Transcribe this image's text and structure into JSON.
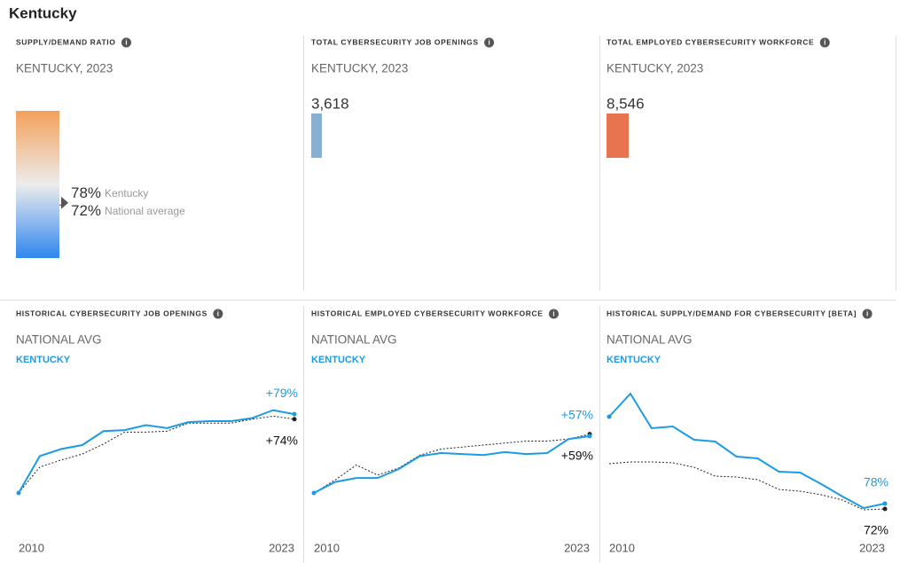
{
  "title": "Kentucky",
  "chart_data": [
    {
      "type": "gauge",
      "title": "SUPPLY/DEMAND RATIO",
      "subtitle": "KENTUCKY, 2023",
      "ylim": [
        0,
        200
      ],
      "gradient": [
        "#f4a05a",
        "#ececec",
        "#2f86ef"
      ],
      "series": [
        {
          "name": "Kentucky",
          "values": [
            78
          ],
          "value_labels": [
            "78%"
          ],
          "color": "#555555"
        },
        {
          "name": "National average",
          "values": [
            72
          ],
          "value_labels": [
            "72%"
          ],
          "color": "#555555"
        }
      ]
    },
    {
      "type": "bar",
      "title": "TOTAL CYBERSECURITY JOB OPENINGS",
      "subtitle": "KENTUCKY, 2023",
      "values": [
        3618
      ],
      "value_labels": [
        "3,618"
      ],
      "color": "#88b0d2",
      "ylim": [
        0,
        3618
      ]
    },
    {
      "type": "bar",
      "title": "TOTAL EMPLOYED CYBERSECURITY WORKFORCE",
      "subtitle": "KENTUCKY, 2023",
      "values": [
        8546
      ],
      "value_labels": [
        "8,546"
      ],
      "color": "#e8744f",
      "ylim": [
        0,
        8546
      ]
    },
    {
      "type": "line",
      "title": "HISTORICAL CYBERSECURITY JOB OPENINGS",
      "x": [
        2010,
        2011,
        2012,
        2013,
        2014,
        2015,
        2016,
        2017,
        2018,
        2019,
        2020,
        2021,
        2022,
        2023
      ],
      "xlim": [
        2010,
        2023
      ],
      "xticks": [
        2010,
        2023
      ],
      "ylim": [
        -40,
        120
      ],
      "series": [
        {
          "name": "NATIONAL AVG",
          "color": "#222222",
          "values": [
            0,
            26,
            33,
            39,
            49,
            61,
            61,
            62,
            70,
            70,
            70,
            74,
            77,
            74
          ],
          "value_labels": [
            null,
            null,
            null,
            null,
            null,
            null,
            null,
            null,
            null,
            null,
            null,
            null,
            null,
            "+74%"
          ]
        },
        {
          "name": "KENTUCKY",
          "color": "#1a9be6",
          "values": [
            0,
            37,
            44,
            48,
            62,
            63,
            68,
            65,
            71,
            72,
            72,
            75,
            83,
            79
          ],
          "value_labels": [
            null,
            null,
            null,
            null,
            null,
            null,
            null,
            null,
            null,
            null,
            null,
            null,
            null,
            "+79%"
          ]
        }
      ]
    },
    {
      "type": "line",
      "title": "HISTORICAL EMPLOYED CYBERSECURITY WORKFORCE",
      "x": [
        2010,
        2011,
        2012,
        2013,
        2014,
        2015,
        2016,
        2017,
        2018,
        2019,
        2020,
        2021,
        2022,
        2023
      ],
      "xlim": [
        2010,
        2023
      ],
      "xticks": [
        2010,
        2023
      ],
      "ylim": [
        -40,
        120
      ],
      "series": [
        {
          "name": "NATIONAL AVG",
          "color": "#222222",
          "values": [
            0,
            13,
            28,
            18,
            25,
            38,
            44,
            46,
            48,
            50,
            52,
            52,
            54,
            59
          ],
          "value_labels": [
            null,
            null,
            null,
            null,
            null,
            null,
            null,
            null,
            null,
            null,
            null,
            null,
            null,
            "+59%"
          ]
        },
        {
          "name": "KENTUCKY",
          "color": "#1a9be6",
          "values": [
            0,
            11,
            15,
            15,
            24,
            37,
            40,
            39,
            38,
            41,
            39,
            40,
            54,
            57
          ],
          "value_labels": [
            null,
            null,
            null,
            null,
            null,
            null,
            null,
            null,
            null,
            null,
            null,
            null,
            null,
            "+57%"
          ]
        }
      ]
    },
    {
      "type": "line",
      "title": "HISTORICAL SUPPLY/DEMAND FOR CYBERSECURITY [BETA]",
      "x": [
        2010,
        2011,
        2012,
        2013,
        2014,
        2015,
        2016,
        2017,
        2018,
        2019,
        2020,
        2021,
        2022,
        2023
      ],
      "xlim": [
        2010,
        2023
      ],
      "xticks": [
        2010,
        2023
      ],
      "ylim": [
        45,
        225
      ],
      "series": [
        {
          "name": "NATIONAL AVG",
          "color": "#222222",
          "values": [
            123,
            125,
            125,
            124,
            119,
            109,
            108,
            105,
            94,
            92,
            88,
            82,
            71,
            72
          ],
          "value_labels": [
            null,
            null,
            null,
            null,
            null,
            null,
            null,
            null,
            null,
            null,
            null,
            null,
            null,
            "72%"
          ]
        },
        {
          "name": "KENTUCKY",
          "color": "#1a9be6",
          "values": [
            176,
            202,
            163,
            165,
            150,
            148,
            131,
            129,
            114,
            113,
            100,
            86,
            73,
            78
          ],
          "value_labels": [
            null,
            null,
            null,
            null,
            null,
            null,
            null,
            null,
            null,
            null,
            null,
            null,
            null,
            "78%"
          ]
        }
      ]
    }
  ]
}
